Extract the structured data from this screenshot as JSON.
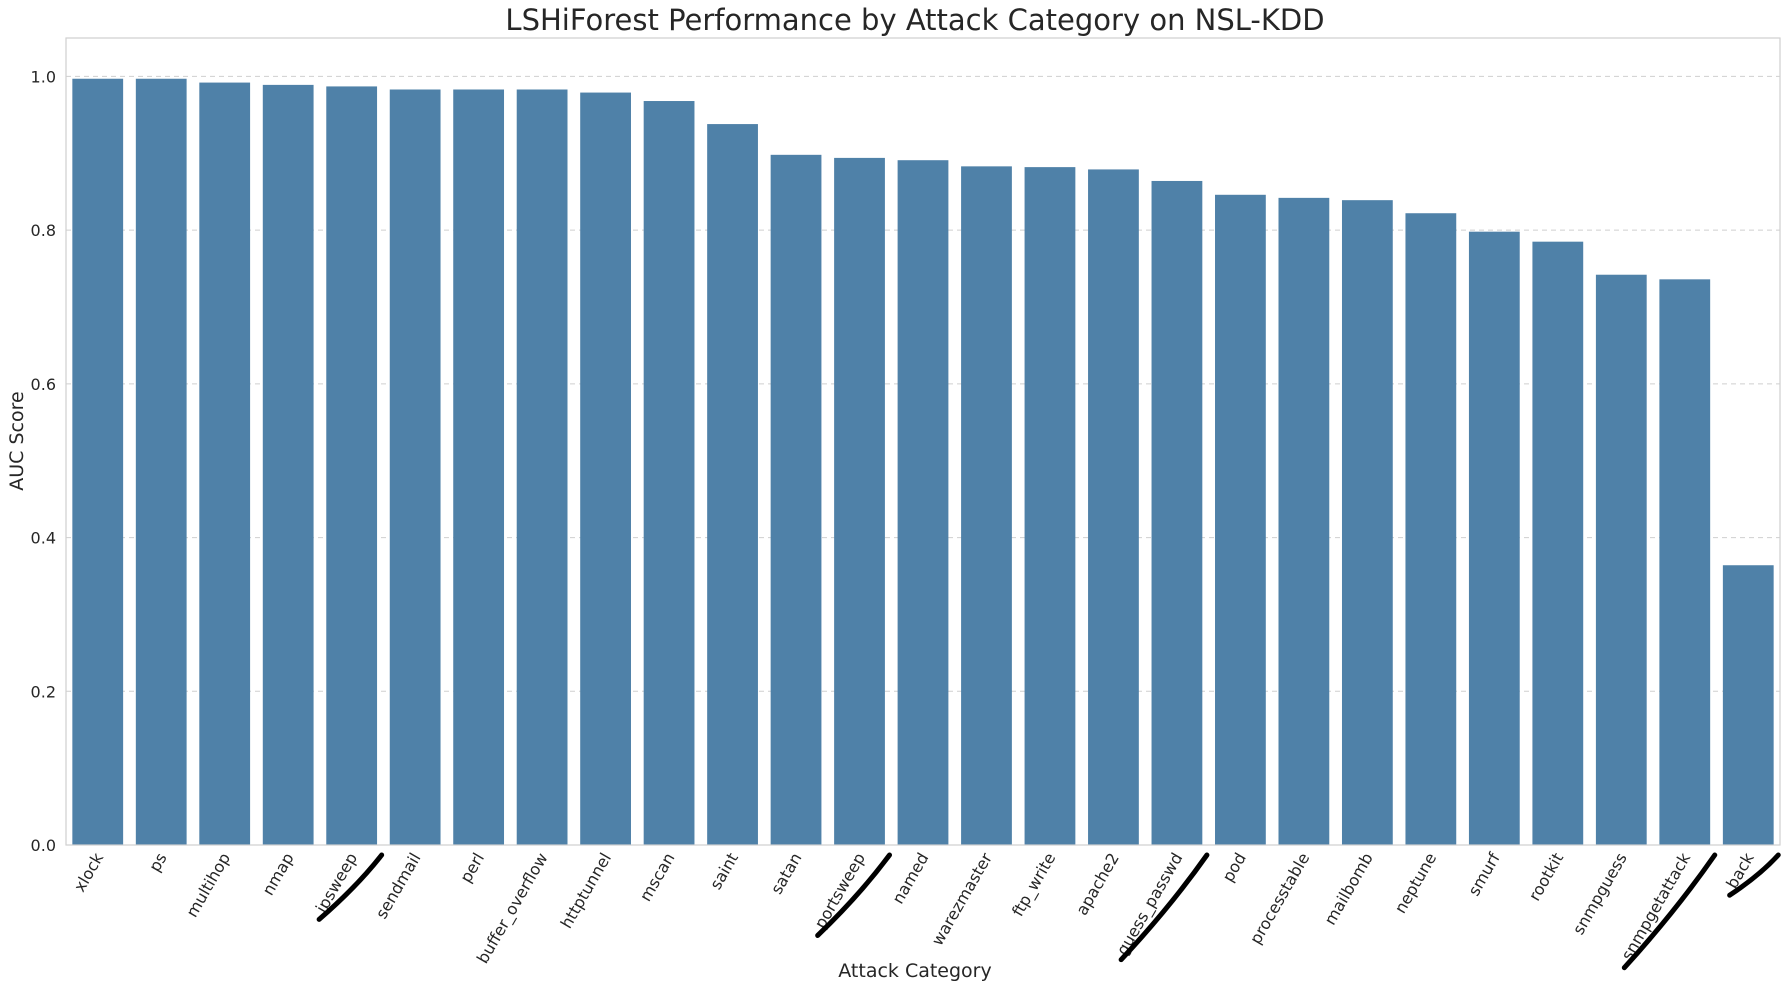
{
  "chart_data": {
    "type": "bar",
    "title": "LSHiForest Performance by Attack Category on NSL-KDD",
    "xlabel": "Attack Category",
    "ylabel": "AUC Score",
    "ylim": [
      0,
      1.05
    ],
    "yticks": [
      0.0,
      0.2,
      0.4,
      0.6,
      0.8,
      1.0
    ],
    "ytick_labels": [
      "0.0",
      "0.2",
      "0.4",
      "0.6",
      "0.8",
      "1.0"
    ],
    "grid": true,
    "bar_color": "#4f81a8",
    "categories": [
      "xlock",
      "ps",
      "multihop",
      "nmap",
      "ipsweep",
      "sendmail",
      "perl",
      "buffer_overflow",
      "httptunnel",
      "mscan",
      "saint",
      "satan",
      "portsweep",
      "named",
      "warezmaster",
      "ftp_write",
      "apache2",
      "guess_passwd",
      "pod",
      "processtable",
      "mailbomb",
      "neptune",
      "smurf",
      "rootkit",
      "snmpguess",
      "snmpgetattack",
      "back"
    ],
    "values": [
      0.997,
      0.997,
      0.992,
      0.989,
      0.987,
      0.983,
      0.983,
      0.983,
      0.979,
      0.968,
      0.938,
      0.898,
      0.894,
      0.891,
      0.883,
      0.882,
      0.879,
      0.864,
      0.846,
      0.842,
      0.839,
      0.822,
      0.798,
      0.785,
      0.742,
      0.736,
      0.364
    ],
    "marked_categories": [
      "ipsweep",
      "portsweep",
      "guess_passwd",
      "snmpgetattack",
      "back"
    ]
  }
}
